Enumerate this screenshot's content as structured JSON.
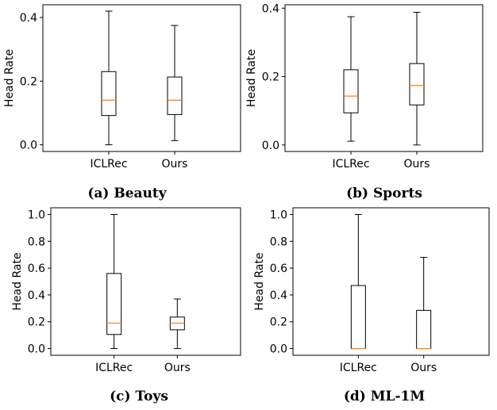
{
  "chart_data": [
    {
      "type": "box",
      "caption": "(a) Beauty",
      "ylabel": "Head Rate",
      "categories": [
        "ICLRec",
        "Ours"
      ],
      "ylim": [
        -0.021,
        0.44
      ],
      "yticks": [
        "0.0",
        "0.2",
        "0.4"
      ],
      "boxes": [
        {
          "name": "ICLRec",
          "min": 0.0,
          "q1": 0.092,
          "median": 0.14,
          "q3": 0.23,
          "max": 0.42
        },
        {
          "name": "Ours",
          "min": 0.013,
          "q1": 0.095,
          "median": 0.14,
          "q3": 0.213,
          "max": 0.375
        }
      ]
    },
    {
      "type": "box",
      "caption": "(b) Sports",
      "ylabel": "Head Rate",
      "categories": [
        "ICLRec",
        "Ours"
      ],
      "ylim": [
        -0.019,
        0.41
      ],
      "yticks": [
        "0.0",
        "0.2",
        "0.4"
      ],
      "boxes": [
        {
          "name": "ICLRec",
          "min": 0.011,
          "q1": 0.094,
          "median": 0.143,
          "q3": 0.22,
          "max": 0.375
        },
        {
          "name": "Ours",
          "min": 0.0,
          "q1": 0.117,
          "median": 0.174,
          "q3": 0.238,
          "max": 0.388
        }
      ]
    },
    {
      "type": "box",
      "caption": "(c) Toys",
      "ylabel": "Head Rate",
      "categories": [
        "ICLRec",
        "Ours"
      ],
      "ylim": [
        -0.05,
        1.05
      ],
      "yticks": [
        "0.0",
        "0.2",
        "0.4",
        "0.6",
        "0.8",
        "1.0"
      ],
      "boxes": [
        {
          "name": "ICLRec",
          "min": 0.0,
          "q1": 0.105,
          "median": 0.19,
          "q3": 0.56,
          "max": 1.0
        },
        {
          "name": "Ours",
          "min": 0.0,
          "q1": 0.14,
          "median": 0.19,
          "q3": 0.235,
          "max": 0.37
        }
      ]
    },
    {
      "type": "box",
      "caption": "(d) ML-1M",
      "ylabel": "Head Rate",
      "categories": [
        "ICLRec",
        "Ours"
      ],
      "ylim": [
        -0.05,
        1.05
      ],
      "yticks": [
        "0.0",
        "0.2",
        "0.4",
        "0.6",
        "0.8",
        "1.0"
      ],
      "boxes": [
        {
          "name": "ICLRec",
          "min": 0.0,
          "q1": 0.0,
          "median": 0.0,
          "q3": 0.47,
          "max": 1.0
        },
        {
          "name": "Ours",
          "min": 0.0,
          "q1": 0.0,
          "median": 0.0,
          "q3": 0.285,
          "max": 0.68
        }
      ]
    }
  ],
  "colors": {
    "median": "#ff7f0e",
    "box": "#000000",
    "axes": "#000000"
  }
}
